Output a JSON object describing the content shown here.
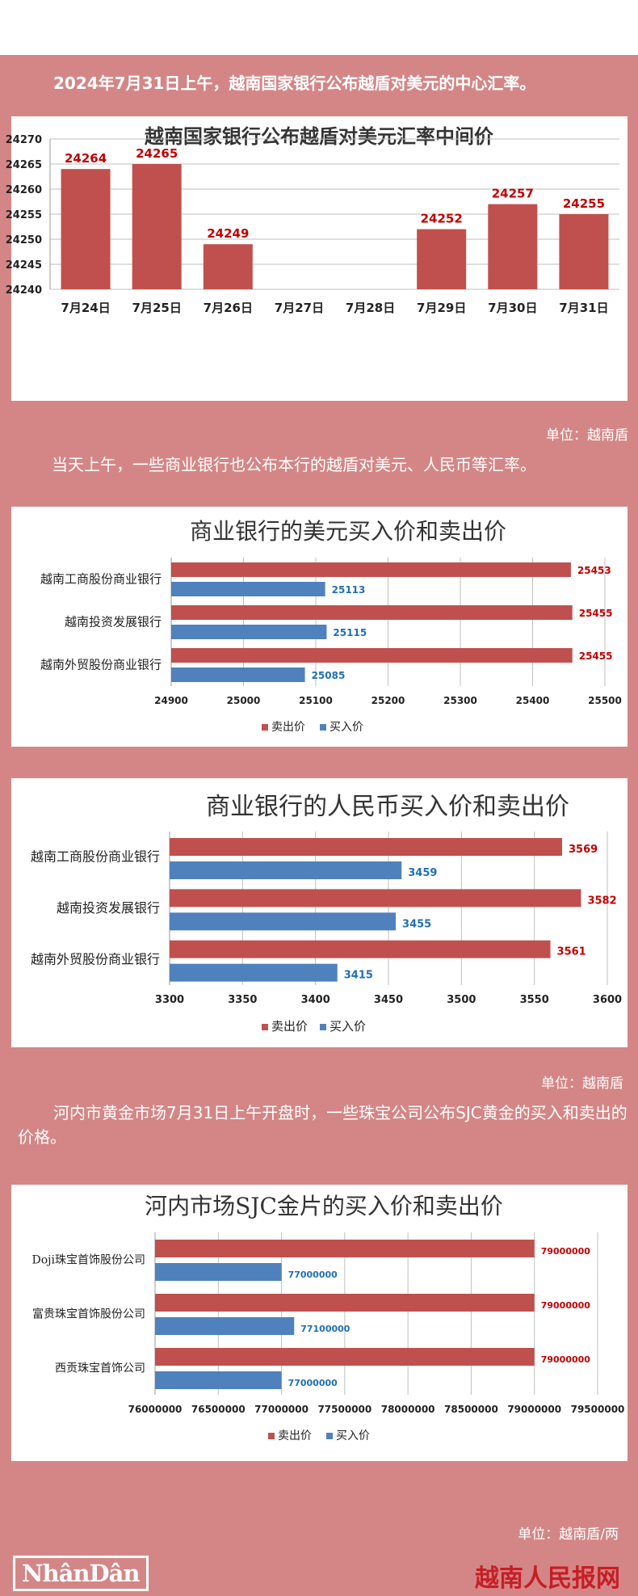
{
  "intro1": "2024年7月31日上午，越南国家银行公布越盾对美元的中心汇率。",
  "intro2": "当天上午，一些商业银行也公布本行的越盾对美元、人民币等汇率。",
  "intro3": "河内市黄金市场7月31日上午开盘时，一些珠宝公司公布SJC黄金的买入和卖出的价格。",
  "unit1": "单位：越南盾",
  "unit2": "单位：越南盾",
  "unit3": "单位：越南盾/两",
  "footer": {
    "logo": "NhânDân",
    "site": "越南人民报网"
  },
  "colors": {
    "background": "#d48686",
    "sell": "#c0504d",
    "buy": "#4f81bd",
    "sell_label": "#c00000",
    "buy_label": "#1f6fb5"
  },
  "chart_data": [
    {
      "type": "bar",
      "title": "越南国家银行公布越盾对美元汇率中间价",
      "categories": [
        "7月24日",
        "7月25日",
        "7月26日",
        "7月27日",
        "7月28日",
        "7月29日",
        "7月30日",
        "7月31日"
      ],
      "values": [
        24264,
        24265,
        24249,
        null,
        null,
        24252,
        24257,
        24255
      ],
      "data_labels": [
        "24264",
        "24265",
        "24249",
        "",
        "",
        "24252",
        "24257",
        "24255"
      ],
      "ylim": [
        24240,
        24270
      ],
      "yticks": [
        "24240",
        "24245",
        "24250",
        "24255",
        "24260",
        "24265",
        "24270"
      ],
      "grid": true
    },
    {
      "type": "bar",
      "orientation": "horizontal",
      "title": "商业银行的美元买入价和卖出价",
      "categories": [
        "越南工商股份商业银行",
        "越南投资发展银行",
        "越南外贸股份商业银行"
      ],
      "series": [
        {
          "name": "卖出价",
          "values": [
            25453,
            25455,
            25455
          ]
        },
        {
          "name": "买入价",
          "values": [
            25113,
            25115,
            25085
          ]
        }
      ],
      "xlim": [
        24900,
        25500
      ],
      "xticks": [
        "24900",
        "25000",
        "25100",
        "25200",
        "25300",
        "25400",
        "25500"
      ],
      "legend": "bottom",
      "grid": true
    },
    {
      "type": "bar",
      "orientation": "horizontal",
      "title": "商业银行的人民币买入价和卖出价",
      "categories": [
        "越南工商股份商业银行",
        "越南投资发展银行",
        "越南外贸股份商业银行"
      ],
      "series": [
        {
          "name": "卖出价",
          "values": [
            3569,
            3582,
            3561
          ]
        },
        {
          "name": "买入价",
          "values": [
            3459,
            3455,
            3415
          ]
        }
      ],
      "xlim": [
        3300,
        3600
      ],
      "xticks": [
        "3300",
        "3350",
        "3400",
        "3450",
        "3500",
        "3550",
        "3600"
      ],
      "legend": "bottom",
      "grid": true
    },
    {
      "type": "bar",
      "orientation": "horizontal",
      "title": "河内市场SJC金片的买入价和卖出价",
      "categories": [
        "Doji珠宝首饰股份公司",
        "富贵珠宝首饰股份公司",
        "西贡珠宝首饰公司"
      ],
      "series": [
        {
          "name": "卖出价",
          "values": [
            79000000,
            79000000,
            79000000
          ]
        },
        {
          "name": "买入价",
          "values": [
            77000000,
            77100000,
            77000000
          ]
        }
      ],
      "xlim": [
        76000000,
        79500000
      ],
      "xticks": [
        "76000000",
        "76500000",
        "77000000",
        "77500000",
        "78000000",
        "78500000",
        "79000000",
        "79500000"
      ],
      "legend": "bottom",
      "grid": true
    }
  ]
}
